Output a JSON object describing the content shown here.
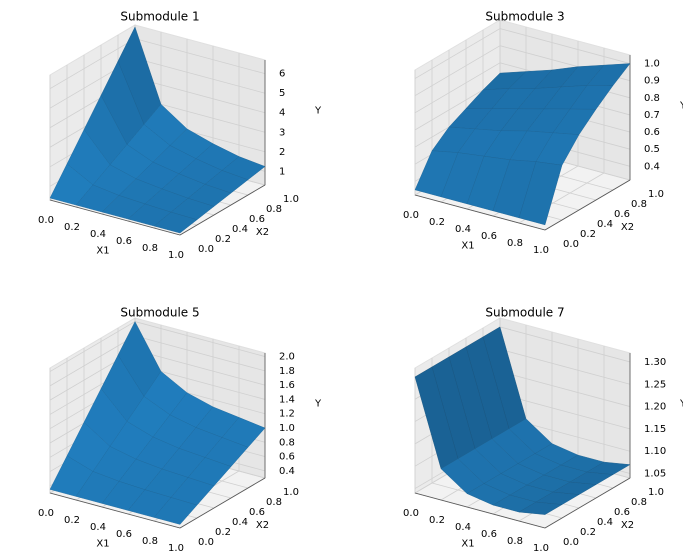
{
  "chart_data": [
    {
      "type": "surface",
      "title": "Submodule 1",
      "xlabel": "X1",
      "ylabel": "X2",
      "zlabel": "Y",
      "color": "#1f77b4",
      "x": [
        0,
        0.2,
        0.4,
        0.6,
        0.8,
        1
      ],
      "y": [
        0,
        0.2,
        0.4,
        0.6,
        0.8,
        1
      ],
      "z": [
        [
          0.4,
          0.4,
          0.4,
          0.4,
          0.4,
          0.4
        ],
        [
          1.64,
          0.92,
          0.74,
          0.66,
          0.6,
          0.57
        ],
        [
          2.88,
          1.44,
          1.08,
          0.92,
          0.8,
          0.74
        ],
        [
          4.12,
          1.96,
          1.42,
          1.18,
          1.0,
          0.91
        ],
        [
          5.36,
          2.48,
          1.76,
          1.44,
          1.2,
          1.08
        ],
        [
          6.6,
          3.0,
          2.1,
          1.7,
          1.4,
          1.25
        ]
      ],
      "xlim": [
        0,
        1
      ],
      "ylim": [
        0,
        1
      ],
      "zlim": [
        0.3,
        6.7
      ],
      "xticks": [
        {
          "value": 0,
          "label": "0.0"
        },
        0.2,
        0.4,
        0.6,
        0.8,
        {
          "value": 1,
          "label": "1.0"
        }
      ],
      "yticks": [
        {
          "value": 0,
          "label": "0.0"
        },
        0.2,
        0.4,
        0.6,
        0.8,
        {
          "value": 1,
          "label": "1.0"
        }
      ],
      "zticks": [
        1,
        2,
        3,
        4,
        5,
        6
      ]
    },
    {
      "type": "surface",
      "title": "Submodule 3",
      "xlabel": "X1",
      "ylabel": "X2",
      "zlabel": "Y",
      "color": "#1f77b4",
      "x": [
        0,
        0.2,
        0.4,
        0.6,
        0.8,
        1
      ],
      "y": [
        0,
        0.2,
        0.4,
        0.6,
        0.8,
        1
      ],
      "z": [
        [
          0.35,
          0.35,
          0.35,
          0.35,
          0.35,
          0.35
        ],
        [
          0.52,
          0.55,
          0.57,
          0.59,
          0.62,
          0.64
        ],
        [
          0.6,
          0.63,
          0.66,
          0.7,
          0.73,
          0.76
        ],
        [
          0.65,
          0.69,
          0.73,
          0.77,
          0.81,
          0.85
        ],
        [
          0.7,
          0.75,
          0.79,
          0.84,
          0.89,
          0.93
        ],
        [
          0.74,
          0.79,
          0.84,
          0.9,
          0.95,
          1.0
        ]
      ],
      "xlim": [
        0,
        1
      ],
      "ylim": [
        0,
        1
      ],
      "zlim": [
        0.32,
        1.05
      ],
      "xticks": [
        {
          "value": 0,
          "label": "0.0"
        },
        0.2,
        0.4,
        0.6,
        0.8,
        {
          "value": 1,
          "label": "1.0"
        }
      ],
      "yticks": [
        {
          "value": 0,
          "label": "0.0"
        },
        0.2,
        0.4,
        0.6,
        0.8,
        {
          "value": 1,
          "label": "1.0"
        }
      ],
      "zticks": [
        0.4,
        0.5,
        0.6,
        0.7,
        0.8,
        0.9,
        {
          "value": 1,
          "label": "1.0"
        }
      ]
    },
    {
      "type": "surface",
      "title": "Submodule 5",
      "xlabel": "X1",
      "ylabel": "X2",
      "zlabel": "Y",
      "color": "#1f77b4",
      "x": [
        0,
        0.2,
        0.4,
        0.6,
        0.8,
        1
      ],
      "y": [
        0,
        0.2,
        0.4,
        0.6,
        0.8,
        1
      ],
      "z": [
        [
          0.35,
          0.35,
          0.35,
          0.35,
          0.35,
          0.35
        ],
        [
          0.68,
          0.56,
          0.52,
          0.5,
          0.49,
          0.48
        ],
        [
          1.01,
          0.77,
          0.69,
          0.65,
          0.63,
          0.61
        ],
        [
          1.34,
          0.98,
          0.86,
          0.8,
          0.77,
          0.74
        ],
        [
          1.67,
          1.19,
          1.03,
          0.95,
          0.91,
          0.87
        ],
        [
          2.0,
          1.4,
          1.2,
          1.1,
          1.05,
          1.0
        ]
      ],
      "xlim": [
        0,
        1
      ],
      "ylim": [
        0,
        1
      ],
      "zlim": [
        0.3,
        2.05
      ],
      "xticks": [
        {
          "value": 0,
          "label": "0.0"
        },
        0.2,
        0.4,
        0.6,
        0.8,
        {
          "value": 1,
          "label": "1.0"
        }
      ],
      "yticks": [
        {
          "value": 0,
          "label": "0.0"
        },
        0.2,
        0.4,
        0.6,
        0.8,
        {
          "value": 1,
          "label": "1.0"
        }
      ],
      "zticks": [
        0.4,
        0.6,
        0.8,
        {
          "value": 1,
          "label": "1.0"
        },
        1.2,
        1.4,
        1.6,
        1.8,
        {
          "value": 2,
          "label": "2.0"
        }
      ]
    },
    {
      "type": "surface",
      "title": "Submodule 7",
      "xlabel": "X1",
      "ylabel": "X2",
      "zlabel": "Y",
      "color": "#1f77b4",
      "x": [
        0,
        0.2,
        0.4,
        0.6,
        0.8,
        1
      ],
      "y": [
        0,
        0.2,
        0.4,
        0.6,
        0.8,
        1
      ],
      "z": [
        [
          1.3,
          1.11,
          1.07,
          1.06,
          1.06,
          1.07
        ],
        [
          1.3,
          1.11,
          1.07,
          1.06,
          1.06,
          1.07
        ],
        [
          1.3,
          1.11,
          1.07,
          1.06,
          1.06,
          1.07
        ],
        [
          1.3,
          1.11,
          1.07,
          1.06,
          1.06,
          1.07
        ],
        [
          1.3,
          1.11,
          1.07,
          1.06,
          1.06,
          1.07
        ],
        [
          1.3,
          1.11,
          1.07,
          1.06,
          1.06,
          1.07
        ]
      ],
      "xlim": [
        0,
        1
      ],
      "ylim": [
        0,
        1
      ],
      "zlim": [
        1.04,
        1.32
      ],
      "xticks": [
        {
          "value": 0,
          "label": "0.0"
        },
        0.2,
        0.4,
        0.6,
        0.8,
        {
          "value": 1,
          "label": "1.0"
        }
      ],
      "yticks": [
        {
          "value": 0,
          "label": "0.0"
        },
        0.2,
        0.4,
        0.6,
        0.8,
        {
          "value": 1,
          "label": "1.0"
        }
      ],
      "zticks": [
        1.05,
        {
          "value": 1.1,
          "label": "1.10"
        },
        1.15,
        {
          "value": 1.2,
          "label": "1.20"
        },
        1.25,
        {
          "value": 1.3,
          "label": "1.30"
        }
      ]
    }
  ]
}
